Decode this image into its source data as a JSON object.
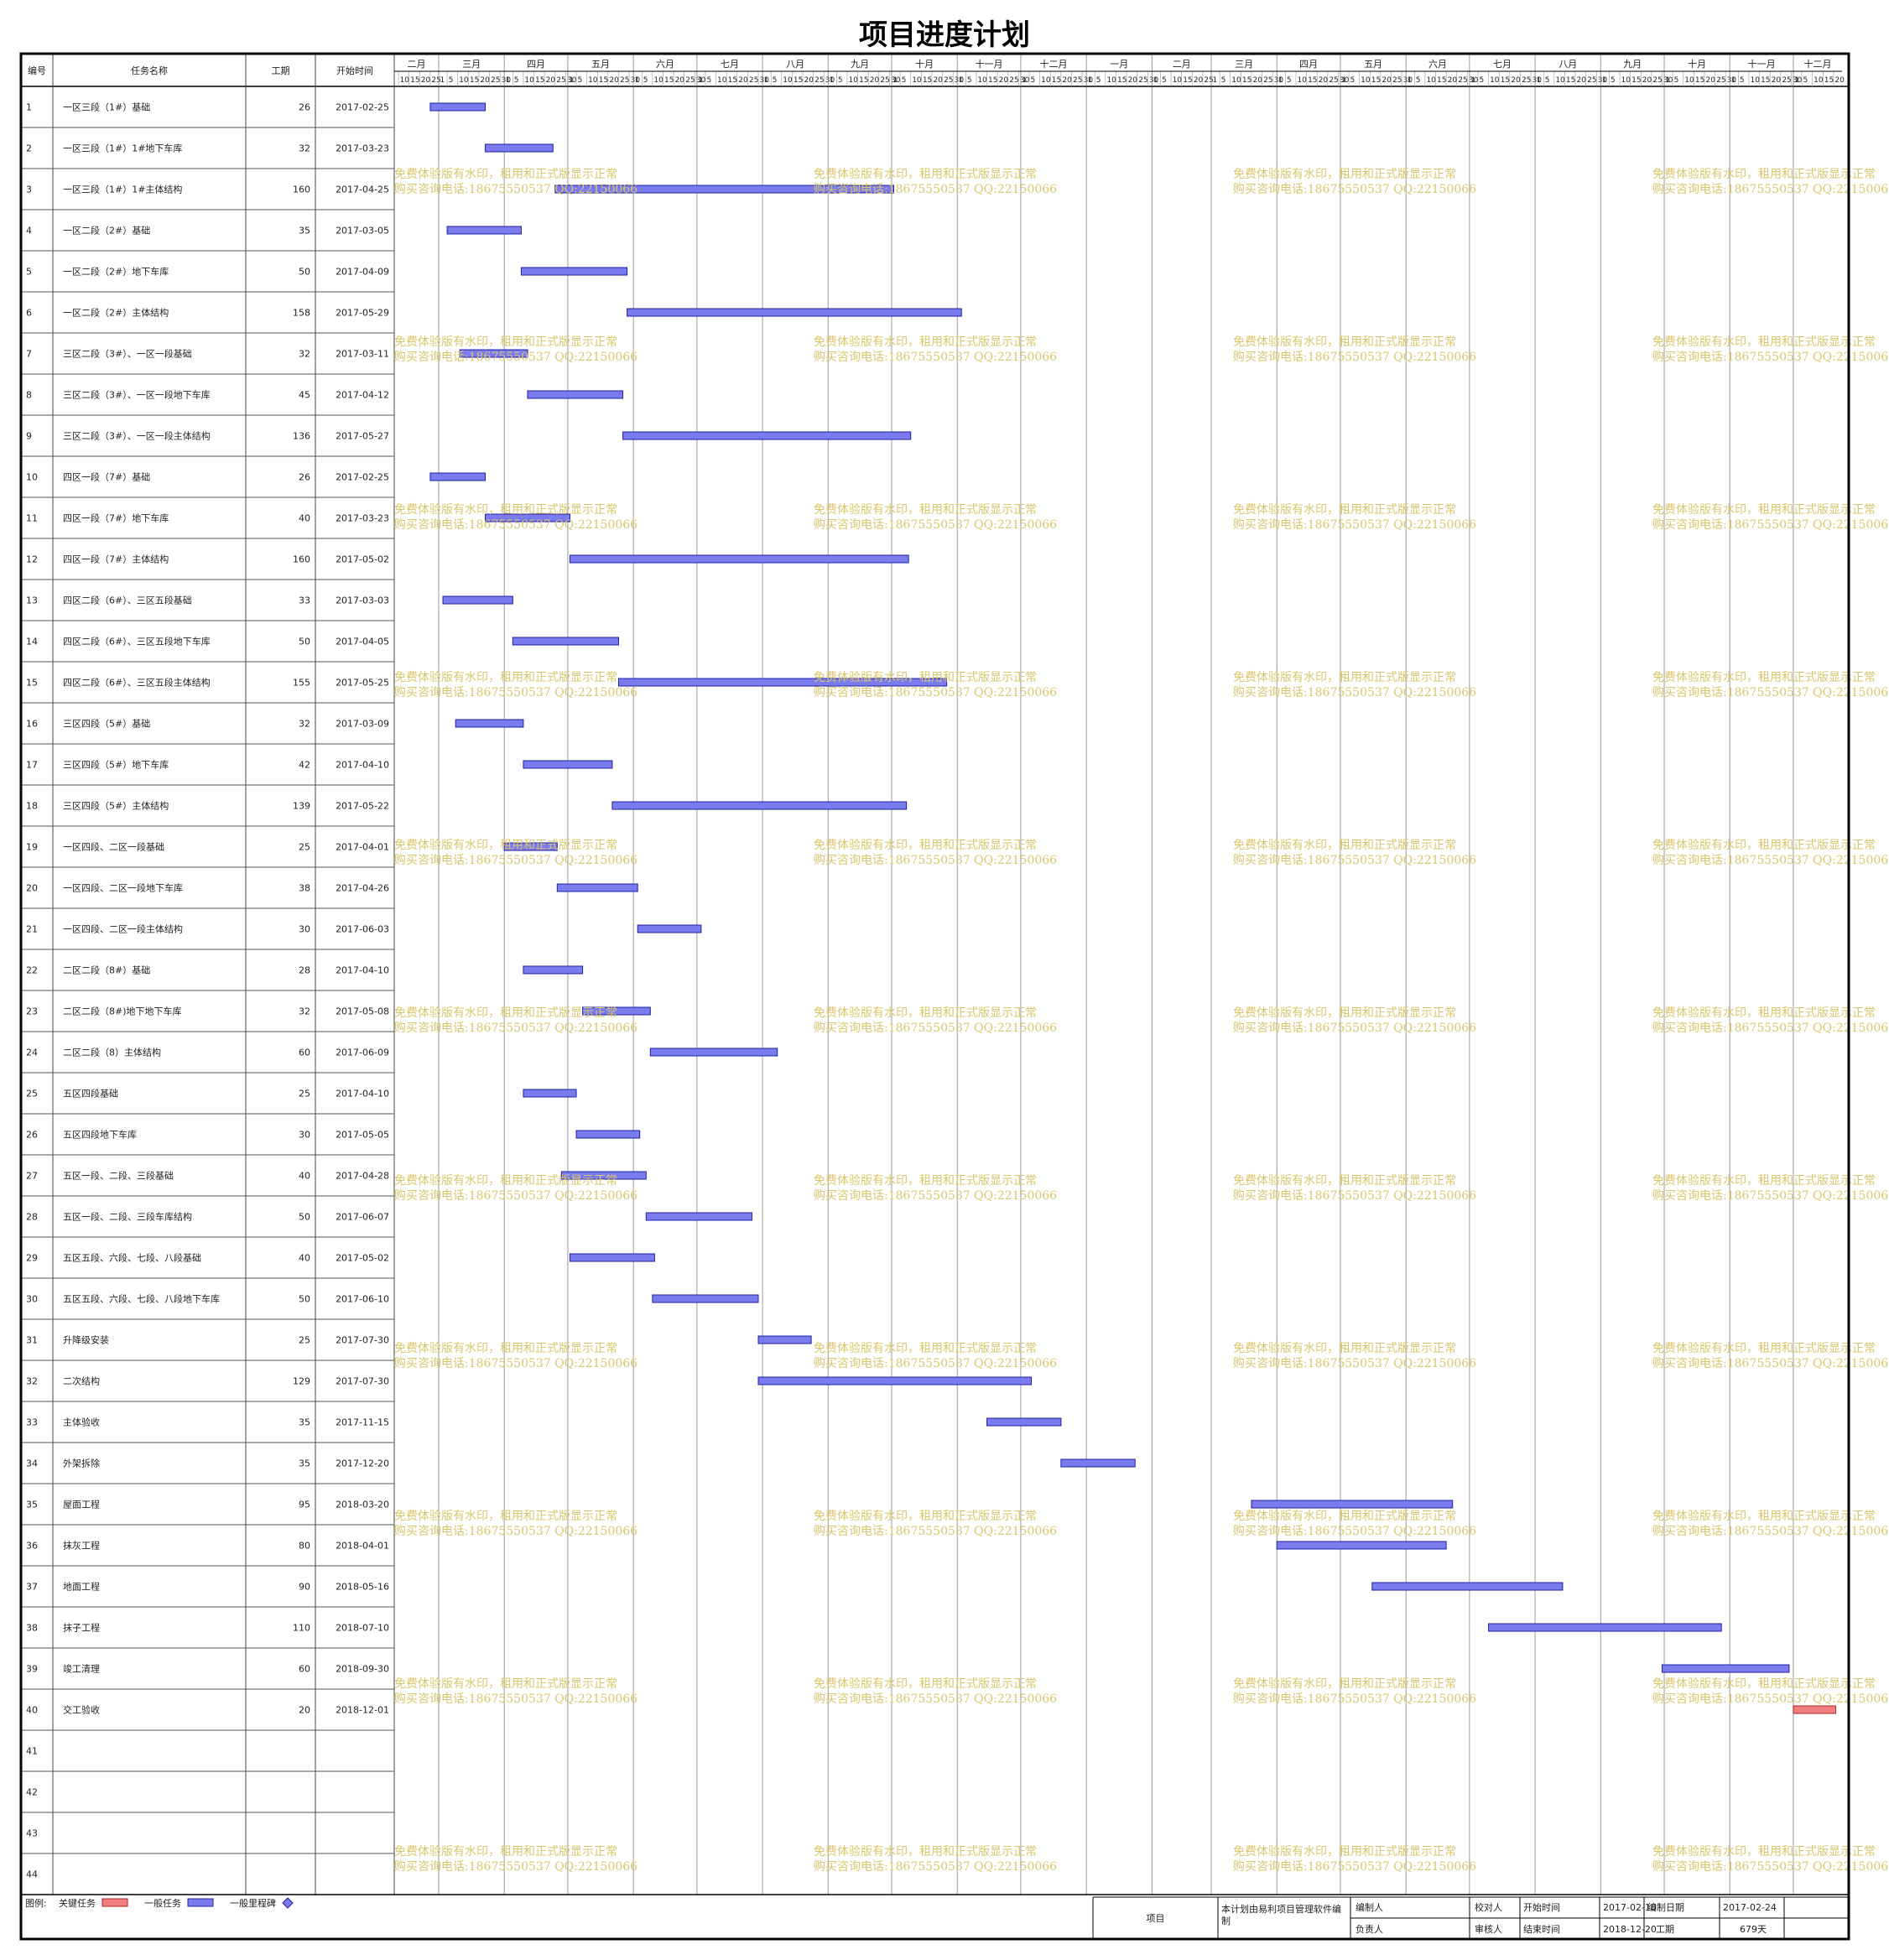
{
  "title": "项目进度计划",
  "columns": {
    "id": "编号",
    "name": "任务名称",
    "duration": "工期",
    "start": "开始时间"
  },
  "timeline": {
    "months": [
      "二月",
      "三月",
      "四月",
      "五月",
      "六月",
      "七月",
      "八月",
      "九月",
      "十月",
      "十一月",
      "十二月",
      "一月",
      "二月",
      "三月",
      "四月",
      "五月",
      "六月",
      "七月",
      "八月",
      "九月",
      "十月",
      "十一月",
      "十二月"
    ],
    "month_starts": [
      "2017-02-01",
      "2017-03-01",
      "2017-04-01",
      "2017-05-01",
      "2017-06-01",
      "2017-07-01",
      "2017-08-01",
      "2017-09-01",
      "2017-10-01",
      "2017-11-01",
      "2017-12-01",
      "2018-01-01",
      "2018-02-01",
      "2018-03-01",
      "2018-04-01",
      "2018-05-01",
      "2018-06-01",
      "2018-07-01",
      "2018-08-01",
      "2018-09-01",
      "2018-10-01",
      "2018-11-01",
      "2018-12-01"
    ],
    "range_start": "2017-02-08",
    "range_end": "2018-12-24"
  },
  "chart_data": {
    "type": "gantt",
    "tasks": [
      {
        "id": "1",
        "name": "一区三段（1#）基础",
        "duration": 26,
        "start": "2017-02-25",
        "kind": "normal"
      },
      {
        "id": "2",
        "name": "一区三段（1#）1#地下车库",
        "duration": 32,
        "start": "2017-03-23",
        "kind": "normal"
      },
      {
        "id": "3",
        "name": "一区三段（1#）1#主体结构",
        "duration": 160,
        "start": "2017-04-25",
        "kind": "normal"
      },
      {
        "id": "4",
        "name": "一区二段（2#）基础",
        "duration": 35,
        "start": "2017-03-05",
        "kind": "normal"
      },
      {
        "id": "5",
        "name": "一区二段（2#）地下车库",
        "duration": 50,
        "start": "2017-04-09",
        "kind": "normal"
      },
      {
        "id": "6",
        "name": "一区二段（2#）主体结构",
        "duration": 158,
        "start": "2017-05-29",
        "kind": "normal"
      },
      {
        "id": "7",
        "name": "三区二段（3#）、一区一段基础",
        "duration": 32,
        "start": "2017-03-11",
        "kind": "normal"
      },
      {
        "id": "8",
        "name": "三区二段（3#）、一区一段地下车库",
        "duration": 45,
        "start": "2017-04-12",
        "kind": "normal"
      },
      {
        "id": "9",
        "name": "三区二段（3#）、一区一段主体结构",
        "duration": 136,
        "start": "2017-05-27",
        "kind": "normal"
      },
      {
        "id": "10",
        "name": "四区一段（7#）基础",
        "duration": 26,
        "start": "2017-02-25",
        "kind": "normal"
      },
      {
        "id": "11",
        "name": "四区一段（7#）地下车库",
        "duration": 40,
        "start": "2017-03-23",
        "kind": "normal"
      },
      {
        "id": "12",
        "name": "四区一段（7#）主体结构",
        "duration": 160,
        "start": "2017-05-02",
        "kind": "normal"
      },
      {
        "id": "13",
        "name": "四区二段（6#）、三区五段基础",
        "duration": 33,
        "start": "2017-03-03",
        "kind": "normal"
      },
      {
        "id": "14",
        "name": "四区二段（6#）、三区五段地下车库",
        "duration": 50,
        "start": "2017-04-05",
        "kind": "normal"
      },
      {
        "id": "15",
        "name": "四区二段（6#）、三区五段主体结构",
        "duration": 155,
        "start": "2017-05-25",
        "kind": "normal"
      },
      {
        "id": "16",
        "name": "三区四段（5#）基础",
        "duration": 32,
        "start": "2017-03-09",
        "kind": "normal"
      },
      {
        "id": "17",
        "name": "三区四段（5#）地下车库",
        "duration": 42,
        "start": "2017-04-10",
        "kind": "normal"
      },
      {
        "id": "18",
        "name": "三区四段（5#）主体结构",
        "duration": 139,
        "start": "2017-05-22",
        "kind": "normal"
      },
      {
        "id": "19",
        "name": "一区四段、二区一段基础",
        "duration": 25,
        "start": "2017-04-01",
        "kind": "normal"
      },
      {
        "id": "20",
        "name": "一区四段、二区一段地下车库",
        "duration": 38,
        "start": "2017-04-26",
        "kind": "normal"
      },
      {
        "id": "21",
        "name": "一区四段、二区一段主体结构",
        "duration": 30,
        "start": "2017-06-03",
        "kind": "normal"
      },
      {
        "id": "22",
        "name": "二区二段（8#）基础",
        "duration": 28,
        "start": "2017-04-10",
        "kind": "normal"
      },
      {
        "id": "23",
        "name": "二区二段（8#)地下地下车库",
        "duration": 32,
        "start": "2017-05-08",
        "kind": "normal"
      },
      {
        "id": "24",
        "name": "二区二段（8）主体结构",
        "duration": 60,
        "start": "2017-06-09",
        "kind": "normal"
      },
      {
        "id": "25",
        "name": "五区四段基础",
        "duration": 25,
        "start": "2017-04-10",
        "kind": "normal"
      },
      {
        "id": "26",
        "name": "五区四段地下车库",
        "duration": 30,
        "start": "2017-05-05",
        "kind": "normal"
      },
      {
        "id": "27",
        "name": "五区一段、二段、三段基础",
        "duration": 40,
        "start": "2017-04-28",
        "kind": "normal"
      },
      {
        "id": "28",
        "name": "五区一段、二段、三段车库结构",
        "duration": 50,
        "start": "2017-06-07",
        "kind": "normal"
      },
      {
        "id": "29",
        "name": "五区五段、六段、七段、八段基础",
        "duration": 40,
        "start": "2017-05-02",
        "kind": "normal"
      },
      {
        "id": "30",
        "name": "五区五段、六段、七段、八段地下车库",
        "duration": 50,
        "start": "2017-06-10",
        "kind": "normal"
      },
      {
        "id": "31",
        "name": "升降级安装",
        "duration": 25,
        "start": "2017-07-30",
        "kind": "normal"
      },
      {
        "id": "32",
        "name": "二次结构",
        "duration": 129,
        "start": "2017-07-30",
        "kind": "normal"
      },
      {
        "id": "33",
        "name": "主体验收",
        "duration": 35,
        "start": "2017-11-15",
        "kind": "normal"
      },
      {
        "id": "34",
        "name": "外架拆除",
        "duration": 35,
        "start": "2017-12-20",
        "kind": "normal"
      },
      {
        "id": "35",
        "name": "屋面工程",
        "duration": 95,
        "start": "2018-03-20",
        "kind": "normal"
      },
      {
        "id": "36",
        "name": "抹灰工程",
        "duration": 80,
        "start": "2018-04-01",
        "kind": "normal"
      },
      {
        "id": "37",
        "name": "地面工程",
        "duration": 90,
        "start": "2018-05-16",
        "kind": "normal"
      },
      {
        "id": "38",
        "name": "抹子工程",
        "duration": 110,
        "start": "2018-07-10",
        "kind": "normal"
      },
      {
        "id": "39",
        "name": "竣工清理",
        "duration": 60,
        "start": "2018-09-30",
        "kind": "normal"
      },
      {
        "id": "40",
        "name": "交工验收",
        "duration": 20,
        "start": "2018-12-01",
        "kind": "critical"
      },
      {
        "id": "41",
        "name": "",
        "duration": null,
        "start": "",
        "kind": "empty"
      },
      {
        "id": "42",
        "name": "",
        "duration": null,
        "start": "",
        "kind": "empty"
      },
      {
        "id": "43",
        "name": "",
        "duration": null,
        "start": "",
        "kind": "empty"
      },
      {
        "id": "44",
        "name": "",
        "duration": null,
        "start": "",
        "kind": "empty"
      }
    ]
  },
  "watermark": {
    "line1": "免费体验版有水印，租用和正式版显示正常",
    "line2": "购买咨询电话:18675550537 QQ:22150066"
  },
  "legend": {
    "label": "图例:",
    "items": [
      {
        "label": "关键任务",
        "kind": "critical",
        "text_color": "#ff0000"
      },
      {
        "label": "一般任务",
        "kind": "normal",
        "text_color": "#222222"
      },
      {
        "label": "一般里程碑",
        "kind": "milestone",
        "text_color": "#222222"
      }
    ]
  },
  "footer": {
    "project_label": "项目",
    "software_note": "本计划由易利项目管理软件编制",
    "editor_label": "编制人",
    "responsible_label": "负责人",
    "checker_label": "校对人",
    "auditor_label": "审核人",
    "start_label": "开始时间",
    "start_value": "2017-02-10",
    "end_label": "结束时间",
    "end_value": "2018-12-20",
    "compile_date_label": "编制日期",
    "compile_date_value": "2017-02-24",
    "duration_label": "工期",
    "duration_value": "679天"
  },
  "colors": {
    "normal_fill": "#7b7bf0",
    "normal_stroke": "#2020a0",
    "critical_fill": "#f08080",
    "critical_stroke": "#b02020",
    "critical_text": "#ff0000",
    "milestone_fill": "#7b7bf0",
    "grid": "#9a9a9a",
    "border": "#000000",
    "watermark": "#d9c66b"
  }
}
